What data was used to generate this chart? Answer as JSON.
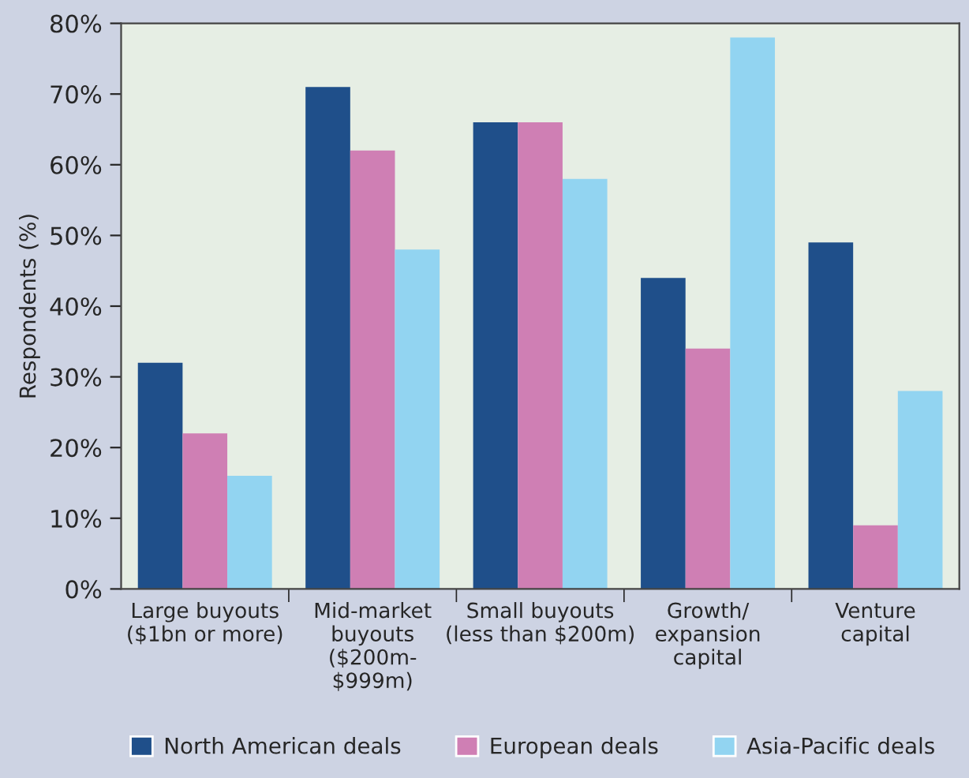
{
  "chart_data": {
    "type": "bar",
    "ylabel": "Respondents (%)",
    "categories": [
      "Large buyouts\n($1bn or more)",
      "Mid-market\nbuyouts\n($200m-\n$999m)",
      "Small buyouts\n(less than $200m)",
      "Growth/\nexpansion\ncapital",
      "Venture\ncapital"
    ],
    "series": [
      {
        "name": "North American deals",
        "color": "#1f4f8a",
        "values": [
          32,
          71,
          66,
          44,
          49
        ]
      },
      {
        "name": "European deals",
        "color": "#cf7fb4",
        "values": [
          22,
          62,
          66,
          34,
          9
        ]
      },
      {
        "name": "Asia-Pacific deals",
        "color": "#92d4f1",
        "values": [
          16,
          48,
          58,
          78,
          28
        ]
      }
    ],
    "ylim": [
      0,
      80
    ],
    "yticks": [
      {
        "value": 0,
        "label": "0%"
      },
      {
        "value": 10,
        "label": "10%"
      },
      {
        "value": 20,
        "label": "20%"
      },
      {
        "value": 30,
        "label": "30%"
      },
      {
        "value": 40,
        "label": "40%"
      },
      {
        "value": 50,
        "label": "50%"
      },
      {
        "value": 60,
        "label": "60%"
      },
      {
        "value": 70,
        "label": "70%"
      },
      {
        "value": 80,
        "label": "80%"
      }
    ],
    "grid": false,
    "legend": "bottom"
  }
}
